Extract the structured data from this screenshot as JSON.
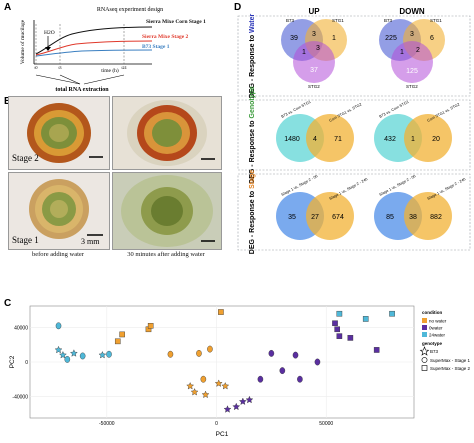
{
  "panels": {
    "a": "A",
    "b": "B",
    "c": "C",
    "d": "D"
  },
  "panel_a": {
    "title": "RNAseq experiment design",
    "ylabel": "Volume of mucilage",
    "xlabel": "time (h)",
    "h2o_label": "H2O",
    "extraction_label": "total RNA extraction",
    "timepoints": [
      "t0",
      "t3",
      "t24"
    ],
    "chart_data": {
      "type": "line",
      "title": "RNAseq experiment design",
      "xlabel": "time (h)",
      "ylabel": "Volume of mucilage",
      "series": [
        {
          "name": "Sierra Mixe Corn Stage 1",
          "color": "#111111"
        },
        {
          "name": "Sierra Mixe Stage 2",
          "color": "#e0392b"
        },
        {
          "name": "B73 Stage 1",
          "color": "#3a7fc1"
        }
      ]
    }
  },
  "panel_b": {
    "labels": {
      "stage2": "Stage 2",
      "stage1": "Stage 1",
      "scale": "3 mm"
    },
    "captions": {
      "before": "before adding water",
      "after": "30 minutes after adding water"
    }
  },
  "panel_d": {
    "col_up": "UP",
    "col_down": "DOWN",
    "rows": [
      {
        "label_prefix": "DEG - Response to ",
        "label_highlight": "Water",
        "highlight_color": "#2a35b8"
      },
      {
        "label_prefix": "DEG - Response to ",
        "label_highlight": "Genotype",
        "highlight_color": "#3a9a3a"
      },
      {
        "label_prefix": "DEG - Response to ",
        "label_highlight": "Stage",
        "highlight_color": "#e08020"
      }
    ],
    "water": {
      "up": {
        "set_labels": [
          "B73",
          "STG1",
          "STG2"
        ],
        "values": {
          "b73_only": "39",
          "b73_stg1": "3",
          "stg1_only": "1",
          "b73_stg2": "1",
          "all": "3",
          "stg2_only": "37"
        }
      },
      "down": {
        "set_labels": [
          "B73",
          "STG1",
          "STG2"
        ],
        "values": {
          "b73_only": "225",
          "b73_stg1": "3",
          "stg1_only": "6",
          "b73_stg2": "1",
          "all": "2",
          "stg2_only": "125"
        }
      }
    },
    "genotype": {
      "up": {
        "left_label": "B73 vs. Corn STG1",
        "right_label": "Corn STG1 vs. STG2",
        "values": [
          "1480",
          "4",
          "71"
        ]
      },
      "down": {
        "left_label": "B73 vs. Corn STG1",
        "right_label": "Corn STG1 vs. STG2",
        "values": [
          "432",
          "1",
          "20"
        ]
      }
    },
    "stage": {
      "up": {
        "left_label": "Stage 1 vs. Stage 2 - 0h",
        "right_label": "Stage 1 vs. Stage 2 - 24h",
        "values": [
          "35",
          "27",
          "674"
        ]
      },
      "down": {
        "left_label": "Stage 1 vs. Stage 2 - 0h",
        "right_label": "Stage 1 vs. Stage 2 - 24h",
        "values": [
          "85",
          "38",
          "882"
        ]
      }
    }
  },
  "panel_c": {
    "legend": {
      "condition_title": "condition",
      "conditions": [
        {
          "name": "no water",
          "color": "#f0a030"
        },
        {
          "name": "0water",
          "color": "#5a2fa0"
        },
        {
          "name": "24water",
          "color": "#4fb8d8"
        }
      ],
      "genotype_title": "genotype",
      "genotypes": [
        {
          "name": "B73",
          "shape": "star"
        },
        {
          "name": "SuperMax - Stage 1",
          "shape": "circle"
        },
        {
          "name": "SuperMax - Stage 2",
          "shape": "square"
        }
      ]
    },
    "chart_data": {
      "type": "scatter",
      "xlabel": "PC1",
      "ylabel": "PC2",
      "xticks": [
        "-50000",
        "0",
        "50000"
      ],
      "yticks": [
        "40000",
        "0",
        "-40000"
      ],
      "xlim": [
        -85000,
        90000
      ],
      "ylim": [
        -65000,
        65000
      ],
      "points": [
        {
          "x": -72000,
          "y": 42000,
          "c": "24water",
          "g": "SuperMax - Stage 1"
        },
        {
          "x": -72000,
          "y": 14000,
          "c": "24water",
          "g": "B73"
        },
        {
          "x": -70000,
          "y": 8000,
          "c": "24water",
          "g": "B73"
        },
        {
          "x": -68000,
          "y": 3000,
          "c": "24water",
          "g": "SuperMax - Stage 1"
        },
        {
          "x": -65000,
          "y": 10000,
          "c": "24water",
          "g": "B73"
        },
        {
          "x": -61000,
          "y": 7000,
          "c": "24water",
          "g": "SuperMax - Stage 1"
        },
        {
          "x": -52000,
          "y": 8000,
          "c": "24water",
          "g": "B73"
        },
        {
          "x": -49000,
          "y": 9000,
          "c": "24water",
          "g": "SuperMax - Stage 1"
        },
        {
          "x": -45000,
          "y": 24000,
          "c": "no water",
          "g": "SuperMax - Stage 2"
        },
        {
          "x": -43000,
          "y": 32000,
          "c": "no water",
          "g": "SuperMax - Stage 2"
        },
        {
          "x": -31000,
          "y": 38000,
          "c": "no water",
          "g": "SuperMax - Stage 2"
        },
        {
          "x": -30000,
          "y": 42000,
          "c": "no water",
          "g": "SuperMax - Stage 2"
        },
        {
          "x": -21000,
          "y": 9000,
          "c": "no water",
          "g": "SuperMax - Stage 1"
        },
        {
          "x": -12000,
          "y": -28000,
          "c": "no water",
          "g": "B73"
        },
        {
          "x": -10000,
          "y": -35000,
          "c": "no water",
          "g": "B73"
        },
        {
          "x": -8000,
          "y": 10000,
          "c": "no water",
          "g": "SuperMax - Stage 1"
        },
        {
          "x": -6000,
          "y": -20000,
          "c": "no water",
          "g": "SuperMax - Stage 1"
        },
        {
          "x": -5000,
          "y": -38000,
          "c": "no water",
          "g": "B73"
        },
        {
          "x": -3000,
          "y": 15000,
          "c": "no water",
          "g": "SuperMax - Stage 1"
        },
        {
          "x": 1000,
          "y": -25000,
          "c": "no water",
          "g": "B73"
        },
        {
          "x": 2000,
          "y": 58000,
          "c": "no water",
          "g": "SuperMax - Stage 2"
        },
        {
          "x": 4000,
          "y": -28000,
          "c": "no water",
          "g": "B73"
        },
        {
          "x": 5000,
          "y": -55000,
          "c": "0water",
          "g": "B73"
        },
        {
          "x": 9000,
          "y": -52000,
          "c": "0water",
          "g": "B73"
        },
        {
          "x": 12000,
          "y": -46000,
          "c": "0water",
          "g": "B73"
        },
        {
          "x": 15000,
          "y": -44000,
          "c": "0water",
          "g": "B73"
        },
        {
          "x": 20000,
          "y": -20000,
          "c": "0water",
          "g": "SuperMax - Stage 1"
        },
        {
          "x": 25000,
          "y": 10000,
          "c": "0water",
          "g": "SuperMax - Stage 1"
        },
        {
          "x": 30000,
          "y": -10000,
          "c": "0water",
          "g": "SuperMax - Stage 1"
        },
        {
          "x": 36000,
          "y": 8000,
          "c": "0water",
          "g": "SuperMax - Stage 1"
        },
        {
          "x": 38000,
          "y": -20000,
          "c": "0water",
          "g": "SuperMax - Stage 1"
        },
        {
          "x": 46000,
          "y": 0,
          "c": "0water",
          "g": "SuperMax - Stage 1"
        },
        {
          "x": 54000,
          "y": 45000,
          "c": "0water",
          "g": "SuperMax - Stage 2"
        },
        {
          "x": 55000,
          "y": 38000,
          "c": "0water",
          "g": "SuperMax - Stage 2"
        },
        {
          "x": 56000,
          "y": 30000,
          "c": "0water",
          "g": "SuperMax - Stage 2"
        },
        {
          "x": 56000,
          "y": 56000,
          "c": "24water",
          "g": "SuperMax - Stage 2"
        },
        {
          "x": 61000,
          "y": 28000,
          "c": "0water",
          "g": "SuperMax - Stage 2"
        },
        {
          "x": 68000,
          "y": 50000,
          "c": "24water",
          "g": "SuperMax - Stage 2"
        },
        {
          "x": 73000,
          "y": 14000,
          "c": "0water",
          "g": "SuperMax - Stage 2"
        },
        {
          "x": 80000,
          "y": 56000,
          "c": "24water",
          "g": "SuperMax - Stage 2"
        }
      ]
    }
  }
}
